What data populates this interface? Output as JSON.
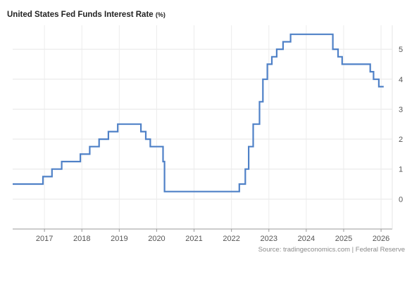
{
  "chart_data": {
    "type": "line",
    "title": "United States Fed Funds Interest Rate",
    "title_unit": "(%)",
    "ylim": [
      -1,
      5.8
    ],
    "xlim": [
      2016.15,
      2026.3
    ],
    "grid": true,
    "line_color": "#4f81c7",
    "y_ticks": [
      0,
      1,
      2,
      3,
      4,
      5
    ],
    "x_ticks": [
      2017,
      2018,
      2019,
      2020,
      2021,
      2022,
      2023,
      2024,
      2025,
      2026
    ],
    "x_tick_labels": [
      "2017",
      "2018",
      "2019",
      "2020",
      "2021",
      "2022",
      "2023",
      "2024",
      "2025",
      "2026"
    ],
    "series": [
      {
        "x": [
          2016.15,
          2016.96,
          2016.96,
          2017.2,
          2017.2,
          2017.46,
          2017.46,
          2017.96,
          2017.96,
          2018.21,
          2018.21,
          2018.46,
          2018.46,
          2018.71,
          2018.71,
          2018.96,
          2018.96,
          2019.58,
          2019.58,
          2019.71,
          2019.71,
          2019.83,
          2019.83,
          2020.17,
          2020.17,
          2020.21,
          2020.21,
          2022.21,
          2022.21,
          2022.37,
          2022.37,
          2022.46,
          2022.46,
          2022.58,
          2022.58,
          2022.75,
          2022.75,
          2022.84,
          2022.84,
          2022.96,
          2022.96,
          2023.08,
          2023.08,
          2023.21,
          2023.21,
          2023.38,
          2023.38,
          2023.58,
          2023.58,
          2024.71,
          2024.71,
          2024.85,
          2024.85,
          2024.96,
          2024.96,
          2025.71,
          2025.71,
          2025.8,
          2025.8,
          2025.94,
          2025.94,
          2026.07
        ],
        "y": [
          0.5,
          0.5,
          0.75,
          0.75,
          1.0,
          1.0,
          1.25,
          1.25,
          1.5,
          1.5,
          1.75,
          1.75,
          2.0,
          2.0,
          2.25,
          2.25,
          2.5,
          2.5,
          2.25,
          2.25,
          2.0,
          2.0,
          1.75,
          1.75,
          1.25,
          1.25,
          0.25,
          0.25,
          0.5,
          0.5,
          1.0,
          1.0,
          1.75,
          1.75,
          2.5,
          2.5,
          3.25,
          3.25,
          4.0,
          4.0,
          4.5,
          4.5,
          4.75,
          4.75,
          5.0,
          5.0,
          5.25,
          5.25,
          5.5,
          5.5,
          5.0,
          5.0,
          4.75,
          4.75,
          4.5,
          4.5,
          4.25,
          4.25,
          4.0,
          4.0,
          3.75,
          3.75
        ]
      }
    ]
  },
  "source": "Source: tradingeconomics.com | Federal Reserve"
}
